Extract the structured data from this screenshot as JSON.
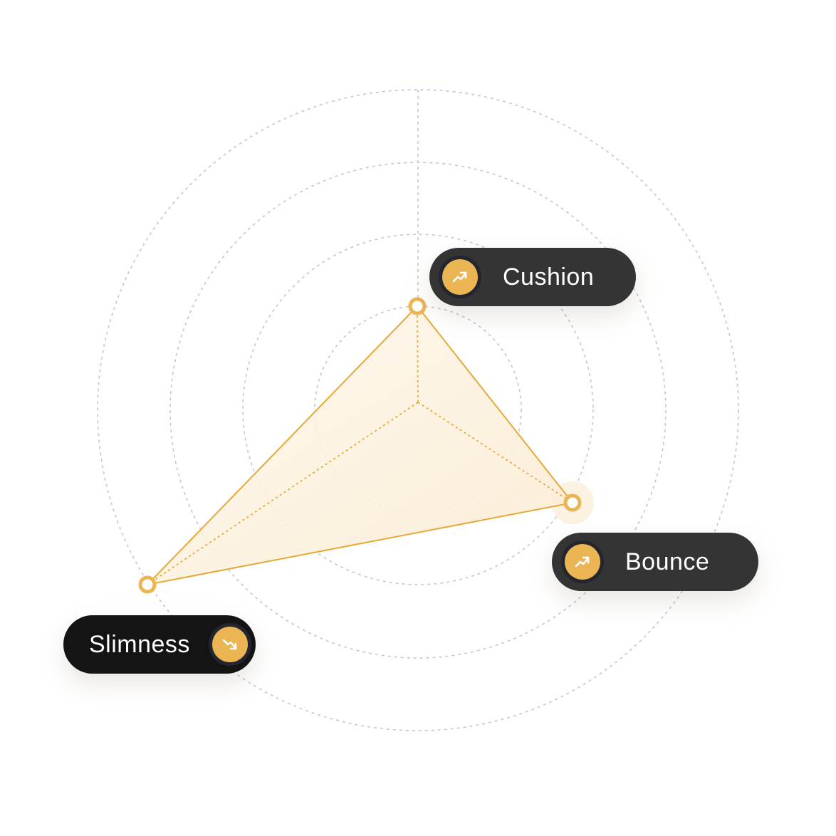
{
  "chart_data": {
    "type": "radar",
    "axes": [
      "Cushion",
      "Bounce",
      "Slimness"
    ],
    "rings": 5,
    "values": [
      1.4,
      2.8,
      4.2
    ],
    "max": 4.5
  },
  "labels": {
    "cushion": {
      "text": "Cushion",
      "trend": "up",
      "icon": "trend-up-icon"
    },
    "bounce": {
      "text": "Bounce",
      "trend": "up",
      "icon": "trend-up-icon"
    },
    "slimness": {
      "text": "Slimness",
      "trend": "down",
      "icon": "trend-down-icon"
    }
  },
  "colors": {
    "accent": "#eab552",
    "line": "#e6a937",
    "fill": "#fcf0dc",
    "grid": "#c6c3dc",
    "pill_dark": "#343434",
    "pill_black": "#141414"
  }
}
